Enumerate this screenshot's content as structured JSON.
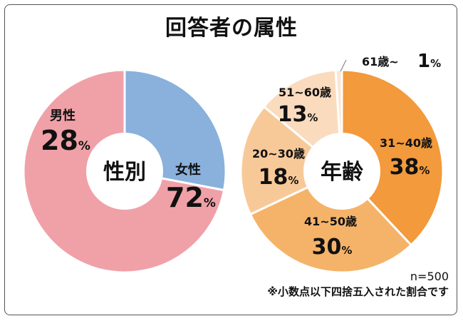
{
  "title": "回答者の属性",
  "sample_size": "n=500",
  "footnote": "※小数点以下四捨五入された割合です",
  "colors": {
    "male": "#8ab0dc",
    "female": "#f0a1a8",
    "age_31_40": "#f39a3c",
    "age_41_50": "#f5b36a",
    "age_20_30": "#f8c998",
    "age_51_60": "#fadbbd",
    "age_61_plus": "#fbe6d2"
  },
  "chart_data": [
    {
      "type": "pie",
      "center_label": "性別",
      "slices": [
        {
          "label": "男性",
          "value": 28,
          "unit": "%",
          "color": "#8ab0dc"
        },
        {
          "label": "女性",
          "value": 72,
          "unit": "%",
          "color": "#f0a1a8"
        }
      ]
    },
    {
      "type": "pie",
      "center_label": "年齢",
      "slices": [
        {
          "label": "31~40歳",
          "value": 38,
          "unit": "%",
          "color": "#f39a3c"
        },
        {
          "label": "41~50歳",
          "value": 30,
          "unit": "%",
          "color": "#f5b36a"
        },
        {
          "label": "20~30歳",
          "value": 18,
          "unit": "%",
          "color": "#f8c998"
        },
        {
          "label": "51~60歳",
          "value": 13,
          "unit": "%",
          "color": "#fadbbd"
        },
        {
          "label": "61歳~",
          "value": 1,
          "unit": "%",
          "color": "#fbe6d2"
        }
      ]
    }
  ]
}
